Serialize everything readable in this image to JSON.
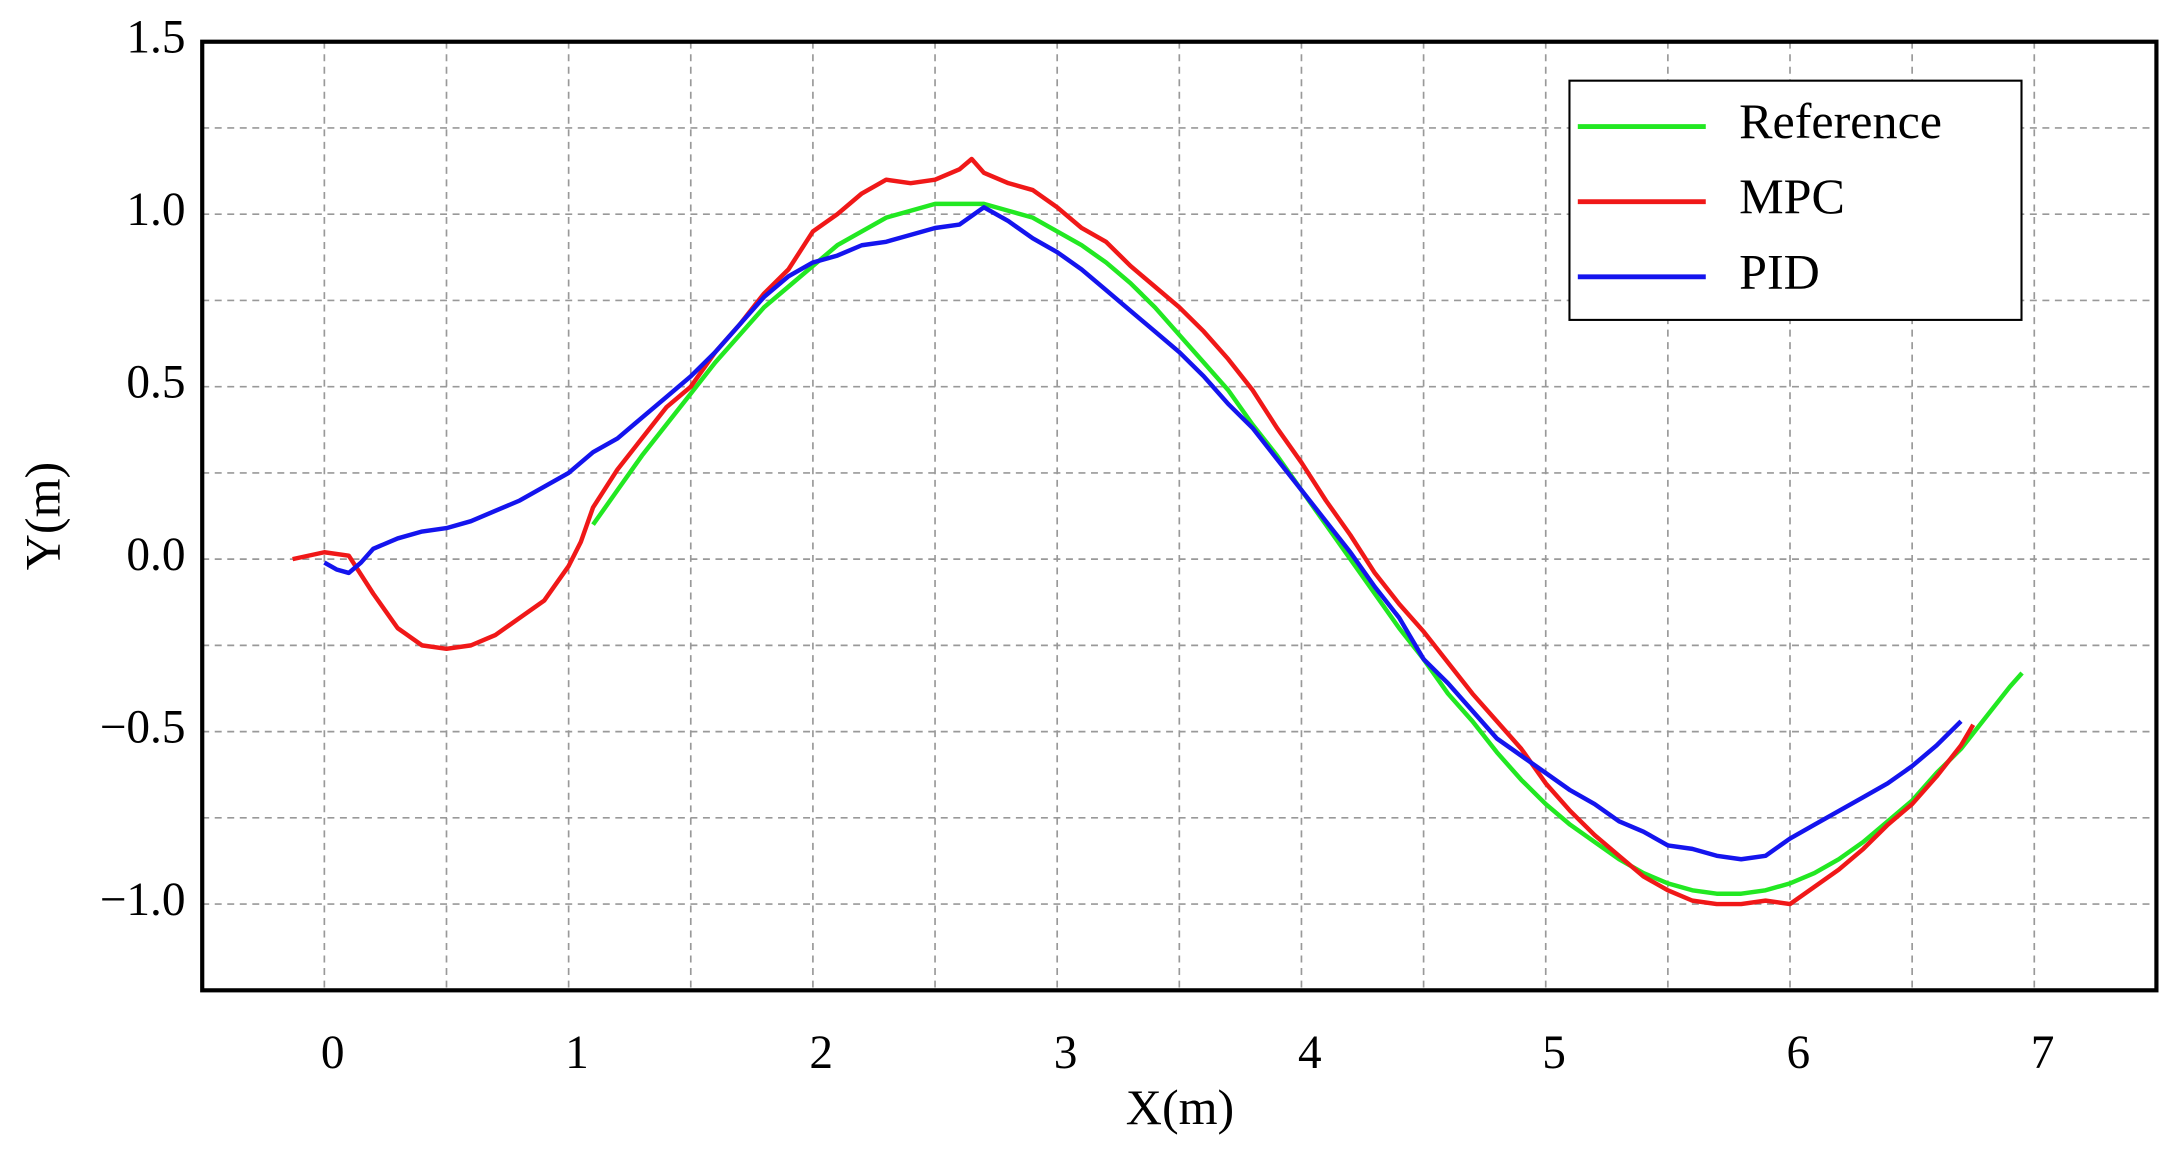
{
  "chart_data": {
    "type": "line",
    "xlabel": "X(m)",
    "ylabel": "Y(m)",
    "xlim": [
      -0.5,
      7.5
    ],
    "ylim": [
      -1.25,
      1.5
    ],
    "xticks": [
      0,
      1,
      2,
      3,
      4,
      5,
      6,
      7
    ],
    "yticks": [
      {
        "value": 1.5,
        "label": "1.5"
      },
      {
        "value": 1.0,
        "label": "1.0"
      },
      {
        "value": 0.5,
        "label": "0.5"
      },
      {
        "value": 0.0,
        "label": "0.0"
      },
      {
        "value": -0.5,
        "label": "−0.5"
      },
      {
        "value": -1.0,
        "label": "−1.0"
      }
    ],
    "grid": true,
    "legend": "upper right",
    "series": [
      {
        "name": "Reference",
        "color": "#22e822",
        "x": [
          1.1,
          1.2,
          1.3,
          1.4,
          1.5,
          1.6,
          1.7,
          1.8,
          1.9,
          2.0,
          2.1,
          2.2,
          2.3,
          2.4,
          2.5,
          2.6,
          2.7,
          2.8,
          2.9,
          3.0,
          3.1,
          3.2,
          3.3,
          3.4,
          3.5,
          3.6,
          3.7,
          3.8,
          3.9,
          4.0,
          4.1,
          4.2,
          4.3,
          4.4,
          4.5,
          4.6,
          4.7,
          4.8,
          4.9,
          5.0,
          5.1,
          5.2,
          5.3,
          5.4,
          5.5,
          5.6,
          5.7,
          5.8,
          5.9,
          6.0,
          6.1,
          6.2,
          6.3,
          6.4,
          6.5,
          6.6,
          6.7,
          6.8,
          6.9,
          6.95
        ],
        "values": [
          0.1,
          0.2,
          0.3,
          0.39,
          0.48,
          0.57,
          0.65,
          0.73,
          0.79,
          0.85,
          0.91,
          0.95,
          0.99,
          1.01,
          1.03,
          1.03,
          1.03,
          1.01,
          0.99,
          0.95,
          0.91,
          0.86,
          0.8,
          0.73,
          0.65,
          0.57,
          0.49,
          0.39,
          0.3,
          0.2,
          0.1,
          0.0,
          -0.1,
          -0.2,
          -0.29,
          -0.39,
          -0.47,
          -0.56,
          -0.64,
          -0.71,
          -0.77,
          -0.82,
          -0.87,
          -0.91,
          -0.94,
          -0.96,
          -0.97,
          -0.97,
          -0.96,
          -0.94,
          -0.91,
          -0.87,
          -0.82,
          -0.76,
          -0.7,
          -0.62,
          -0.55,
          -0.46,
          -0.37,
          -0.33
        ]
      },
      {
        "name": "MPC",
        "color": "#f01818",
        "x": [
          -0.13,
          0,
          0.1,
          0.2,
          0.3,
          0.4,
          0.5,
          0.6,
          0.7,
          0.8,
          0.9,
          1.0,
          1.05,
          1.1,
          1.2,
          1.3,
          1.4,
          1.5,
          1.6,
          1.7,
          1.8,
          1.9,
          2.0,
          2.1,
          2.2,
          2.3,
          2.4,
          2.5,
          2.6,
          2.65,
          2.7,
          2.8,
          2.9,
          3.0,
          3.1,
          3.2,
          3.3,
          3.4,
          3.5,
          3.6,
          3.7,
          3.8,
          3.9,
          4.0,
          4.1,
          4.2,
          4.3,
          4.4,
          4.5,
          4.6,
          4.7,
          4.8,
          4.9,
          5.0,
          5.1,
          5.2,
          5.3,
          5.4,
          5.5,
          5.6,
          5.7,
          5.8,
          5.9,
          6.0,
          6.1,
          6.2,
          6.3,
          6.4,
          6.5,
          6.6,
          6.7,
          6.75
        ],
        "values": [
          0,
          0.02,
          0.01,
          -0.1,
          -0.2,
          -0.25,
          -0.26,
          -0.25,
          -0.22,
          -0.17,
          -0.12,
          -0.02,
          0.05,
          0.15,
          0.26,
          0.35,
          0.44,
          0.5,
          0.6,
          0.68,
          0.77,
          0.84,
          0.95,
          1.0,
          1.06,
          1.1,
          1.09,
          1.1,
          1.13,
          1.16,
          1.12,
          1.09,
          1.07,
          1.02,
          0.96,
          0.92,
          0.85,
          0.79,
          0.73,
          0.66,
          0.58,
          0.49,
          0.38,
          0.28,
          0.17,
          0.07,
          -0.04,
          -0.13,
          -0.21,
          -0.3,
          -0.39,
          -0.47,
          -0.55,
          -0.65,
          -0.73,
          -0.8,
          -0.86,
          -0.92,
          -0.96,
          -0.99,
          -1.0,
          -1.0,
          -0.99,
          -1.0,
          -0.95,
          -0.9,
          -0.84,
          -0.77,
          -0.71,
          -0.63,
          -0.54,
          -0.48
        ]
      },
      {
        "name": "PID",
        "color": "#1414ee",
        "x": [
          0,
          0.05,
          0.1,
          0.15,
          0.2,
          0.3,
          0.4,
          0.5,
          0.6,
          0.7,
          0.8,
          0.9,
          1.0,
          1.1,
          1.2,
          1.3,
          1.4,
          1.5,
          1.6,
          1.7,
          1.8,
          1.9,
          2.0,
          2.1,
          2.2,
          2.3,
          2.4,
          2.5,
          2.6,
          2.7,
          2.8,
          2.9,
          3.0,
          3.1,
          3.2,
          3.3,
          3.4,
          3.5,
          3.6,
          3.7,
          3.8,
          3.9,
          4.0,
          4.1,
          4.2,
          4.3,
          4.4,
          4.5,
          4.6,
          4.7,
          4.8,
          4.9,
          5.0,
          5.1,
          5.2,
          5.3,
          5.4,
          5.5,
          5.6,
          5.7,
          5.8,
          5.9,
          6.0,
          6.1,
          6.2,
          6.3,
          6.4,
          6.5,
          6.6,
          6.7
        ],
        "values": [
          -0.01,
          -0.03,
          -0.04,
          -0.01,
          0.03,
          0.06,
          0.08,
          0.09,
          0.11,
          0.14,
          0.17,
          0.21,
          0.25,
          0.31,
          0.35,
          0.41,
          0.47,
          0.53,
          0.6,
          0.68,
          0.76,
          0.82,
          0.86,
          0.88,
          0.91,
          0.92,
          0.94,
          0.96,
          0.97,
          1.02,
          0.98,
          0.93,
          0.89,
          0.84,
          0.78,
          0.72,
          0.66,
          0.6,
          0.53,
          0.45,
          0.38,
          0.29,
          0.2,
          0.11,
          0.02,
          -0.08,
          -0.17,
          -0.29,
          -0.36,
          -0.44,
          -0.52,
          -0.57,
          -0.62,
          -0.67,
          -0.71,
          -0.76,
          -0.79,
          -0.83,
          -0.84,
          -0.86,
          -0.87,
          -0.86,
          -0.81,
          -0.77,
          -0.73,
          -0.69,
          -0.65,
          -0.6,
          -0.54,
          -0.47
        ]
      }
    ]
  }
}
